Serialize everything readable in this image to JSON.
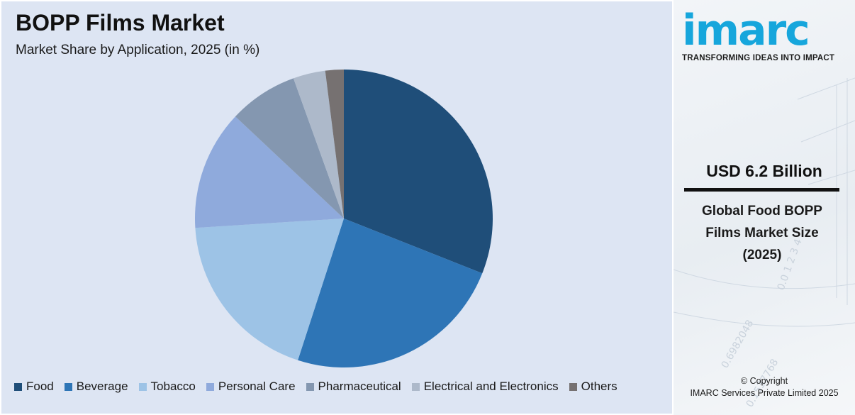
{
  "chart_data": {
    "type": "pie",
    "title": "BOPP Films Market",
    "subtitle": "Market Share by Application, 2025 (in %)",
    "unit": "%",
    "categories": [
      "Food",
      "Beverage",
      "Tobacco",
      "Personal Care",
      "Pharmaceutical",
      "Electrical and Electronics",
      "Others"
    ],
    "values": [
      31,
      24,
      19,
      13,
      7.5,
      3.5,
      2
    ],
    "colors": [
      "#1f4e79",
      "#2e75b6",
      "#9dc3e6",
      "#8faadc",
      "#8497b0",
      "#adb9ca",
      "#767171"
    ],
    "start_angle_deg": 0,
    "direction": "clockwise",
    "legend_position": "bottom"
  },
  "side_panel": {
    "logo": "imarc",
    "tagline": "TRANSFORMING IDEAS INTO IMPACT",
    "stat_value": "USD 6.2 Billion",
    "stat_label": "Global Food BOPP Films Market Size (2025)",
    "copyright_line1": "© Copyright",
    "copyright_line2": "IMARC Services Private Limited 2025"
  }
}
